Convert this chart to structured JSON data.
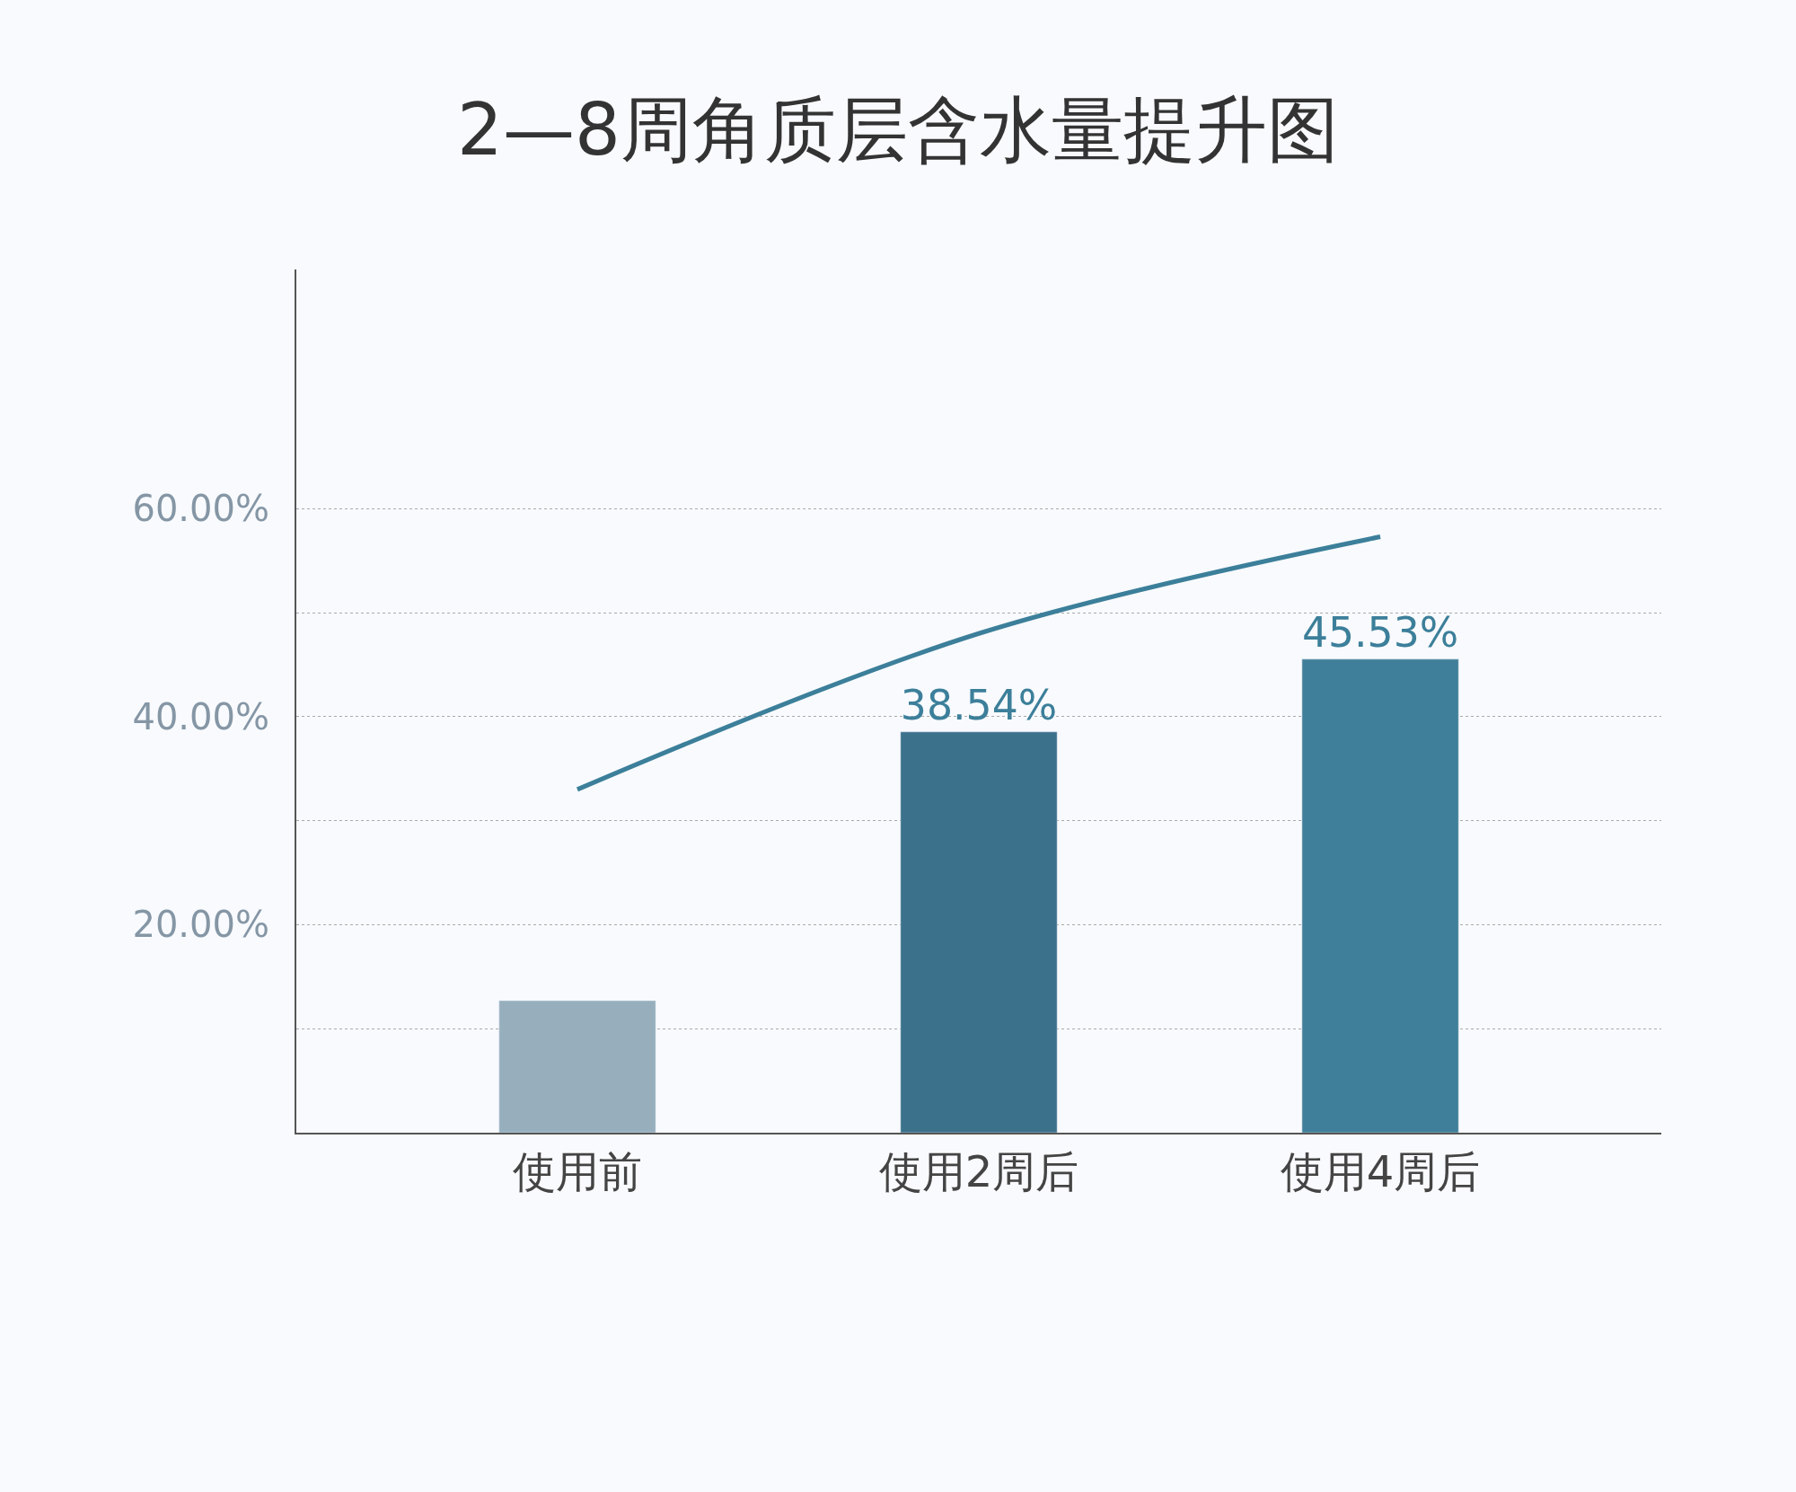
{
  "chart_data": {
    "type": "bar",
    "title": "2—8周角质层含水量提升图",
    "categories": [
      "使用前",
      "使用2周后",
      "使用4周后"
    ],
    "series": [
      {
        "colors": [
          "#97afbd",
          "#3b718b",
          "#407f99"
        ],
        "values": [
          12.7,
          38.54,
          45.53
        ],
        "value_labels": [
          null,
          "38.54%",
          "45.53%"
        ]
      },
      {
        "type": "line",
        "color": "#3c7f9a",
        "values": [
          33,
          48,
          57.3
        ]
      }
    ],
    "ylim": [
      0,
      83
    ],
    "yticks": [
      {
        "value": 10,
        "label": null
      },
      {
        "value": 20,
        "label": "20.00%"
      },
      {
        "value": 30,
        "label": null
      },
      {
        "value": 40,
        "label": "40.00%"
      },
      {
        "value": 50,
        "label": null
      },
      {
        "value": 60,
        "label": "60.00%"
      }
    ],
    "grid": "y",
    "marker": "none",
    "line_style": "solid"
  }
}
